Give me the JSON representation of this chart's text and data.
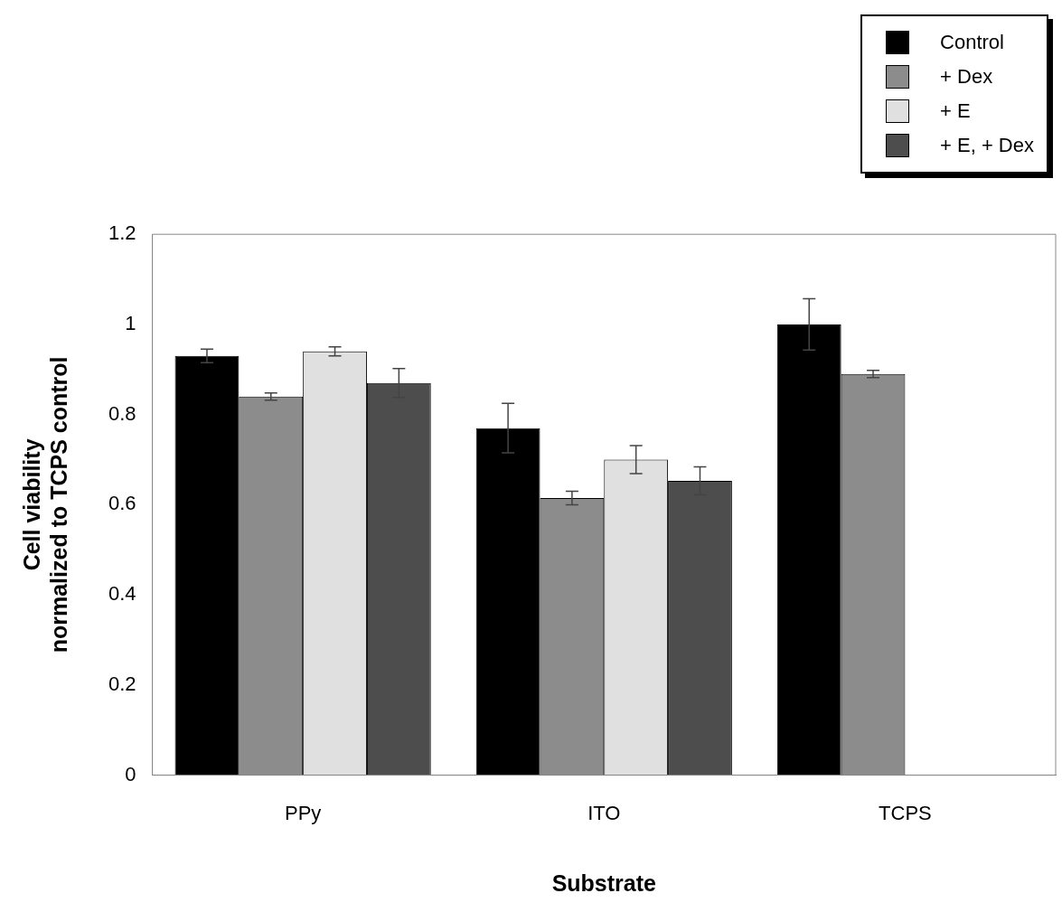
{
  "chart_data": {
    "type": "bar",
    "xlabel": "Substrate",
    "ylabel": "Cell viability\nnormalized to TCPS control",
    "categories": [
      "PPy",
      "ITO",
      "TCPS"
    ],
    "series": [
      {
        "name": "Control",
        "color": "#000000",
        "values": [
          0.93,
          0.77,
          1.0
        ],
        "errors": [
          0.015,
          0.055,
          0.057
        ]
      },
      {
        "name": "+ Dex",
        "color": "#8c8c8c",
        "values": [
          0.84,
          0.615,
          0.89
        ],
        "errors": [
          0.008,
          0.015,
          0.008
        ]
      },
      {
        "name": "+ E",
        "color": "#e0e0e0",
        "values": [
          0.94,
          0.7,
          null
        ],
        "errors": [
          0.01,
          0.031,
          null
        ]
      },
      {
        "name": "+ E, + Dex",
        "color": "#4d4d4d",
        "values": [
          0.87,
          0.653,
          null
        ],
        "errors": [
          0.032,
          0.031,
          null
        ]
      }
    ],
    "ylim": [
      0,
      1.2
    ],
    "yticks": [
      0,
      0.2,
      0.4,
      0.6,
      0.8,
      1,
      1.2
    ],
    "grid": false,
    "legend": "top right"
  }
}
